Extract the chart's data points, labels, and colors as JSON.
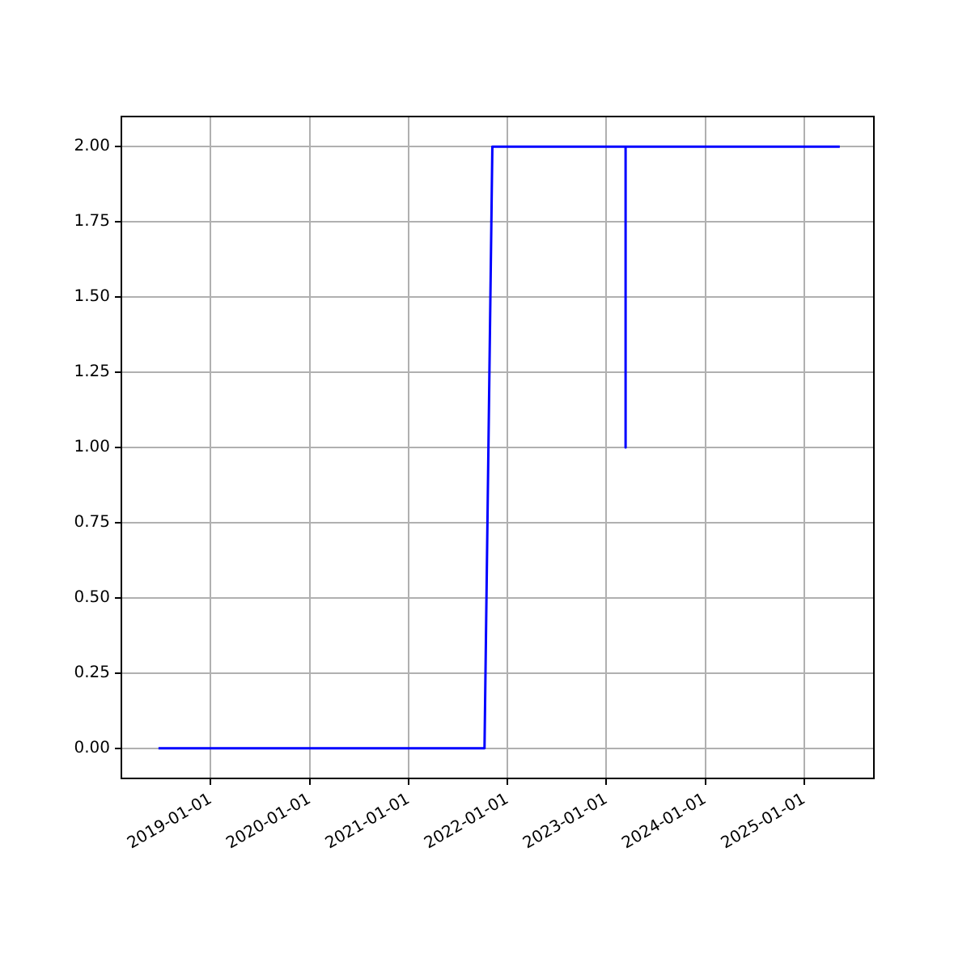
{
  "chart_data": {
    "type": "line",
    "x": [
      "2018-06-22",
      "2021-10-08",
      "2021-11-06",
      "2023-03-13",
      "2023-03-13",
      "2023-03-13",
      "2025-05-12"
    ],
    "series": [
      {
        "color": "#0000ff",
        "values": [
          0,
          0,
          2,
          2,
          1,
          2,
          2
        ]
      }
    ],
    "xlim": [
      "2018-02-05",
      "2025-09-15"
    ],
    "xticks": [
      "2019-01-01",
      "2020-01-01",
      "2021-01-01",
      "2022-01-01",
      "2023-01-01",
      "2024-01-01",
      "2025-01-01"
    ],
    "ylim": [
      -0.1,
      2.1
    ],
    "yticks": [
      {
        "value": 0,
        "label": "0.00"
      },
      {
        "value": 0.25,
        "label": "0.25"
      },
      {
        "value": 0.5,
        "label": "0.50"
      },
      {
        "value": 0.75,
        "label": "0.75"
      },
      {
        "value": 1,
        "label": "1.00"
      },
      {
        "value": 1.25,
        "label": "1.25"
      },
      {
        "value": 1.5,
        "label": "1.50"
      },
      {
        "value": 1.75,
        "label": "1.75"
      },
      {
        "value": 2,
        "label": "2.00"
      }
    ],
    "grid": true,
    "legend": false,
    "marker": "none",
    "line_style": "solid"
  }
}
